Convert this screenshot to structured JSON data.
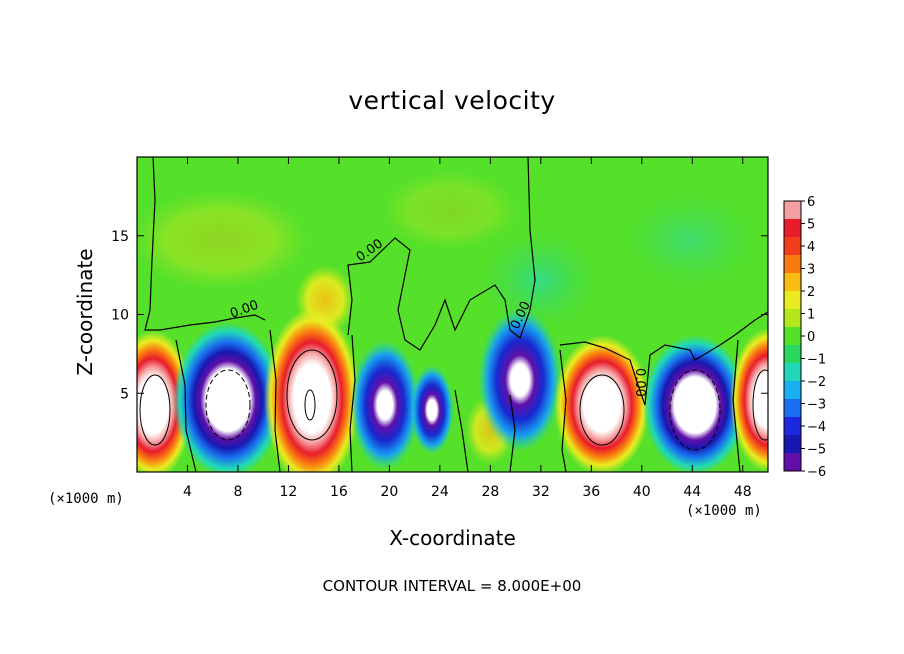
{
  "chart_data": {
    "type": "heatmap",
    "title": "vertical velocity",
    "xlabel": "X-coordinate",
    "ylabel": "Z-coordinate",
    "x_unit_left": "(×1000 m)",
    "x_unit_right": "(×1000 m)",
    "note": "CONTOUR INTERVAL = 8.000E+00",
    "xlim": [
      0,
      50
    ],
    "ylim": [
      0,
      20
    ],
    "x_ticks": [
      "4",
      "8",
      "12",
      "16",
      "20",
      "24",
      "28",
      "32",
      "36",
      "40",
      "44",
      "48"
    ],
    "y_ticks": [
      "5",
      "10",
      "15"
    ],
    "colorbar": {
      "levels": [
        "6",
        "5",
        "4",
        "3",
        "2",
        "1",
        "0",
        "−1",
        "−2",
        "−3",
        "−4",
        "−5",
        "−6"
      ],
      "colors": [
        "#f5a0a0",
        "#e81c2c",
        "#f23d1a",
        "#fa7a10",
        "#fbbd10",
        "#eaec20",
        "#b4e81c",
        "#55e02a",
        "#2ad860",
        "#20d8b8",
        "#18b0f0",
        "#1870f0",
        "#1c28e0",
        "#1818b0",
        "#6010a8"
      ]
    },
    "contour_labels": [
      "0.00",
      "0.00",
      "0.00",
      "0.00"
    ],
    "cells": [
      {
        "x": 2,
        "z": 4,
        "w": 22
      },
      {
        "x": 8,
        "z": 4,
        "w": -22
      },
      {
        "x": 14,
        "z": 5,
        "w": 24
      },
      {
        "x": 20,
        "z": 4,
        "w": -14
      },
      {
        "x": 24,
        "z": 4,
        "w": -8
      },
      {
        "x": 30,
        "z": 5,
        "w": -14
      },
      {
        "x": 38,
        "z": 4,
        "w": 22
      },
      {
        "x": 44,
        "z": 4,
        "w": -22
      },
      {
        "x": 49,
        "z": 4,
        "w": 18
      }
    ]
  }
}
